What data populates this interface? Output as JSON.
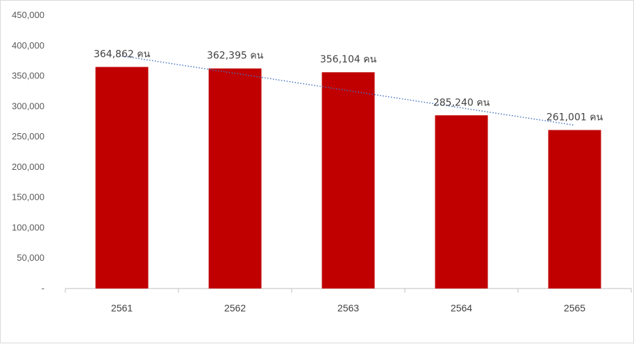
{
  "chart_data": {
    "type": "bar",
    "title": "",
    "xlabel": "",
    "ylabel": "",
    "categories": [
      "2561",
      "2562",
      "2563",
      "2564",
      "2565"
    ],
    "values": [
      364862,
      362395,
      356104,
      285240,
      261001
    ],
    "data_labels": [
      "364,862 คน",
      "362,395 คน",
      "356,104 คน",
      "285,240 คน",
      "261,001 คน"
    ],
    "ylim": [
      0,
      450000
    ],
    "yticks": [
      0,
      50000,
      100000,
      150000,
      200000,
      250000,
      300000,
      350000,
      400000,
      450000
    ],
    "ytick_labels": [
      "-",
      "50,000",
      "100,000",
      "150,000",
      "200,000",
      "250,000",
      "300,000",
      "350,000",
      "400,000",
      "450,000"
    ],
    "grid": false,
    "legend": "none",
    "trendline": {
      "type": "linear",
      "style": "dotted"
    },
    "colors": {
      "bar": "#c00000",
      "trendline": "#4472c4",
      "axis": "#bfbfbf"
    }
  }
}
